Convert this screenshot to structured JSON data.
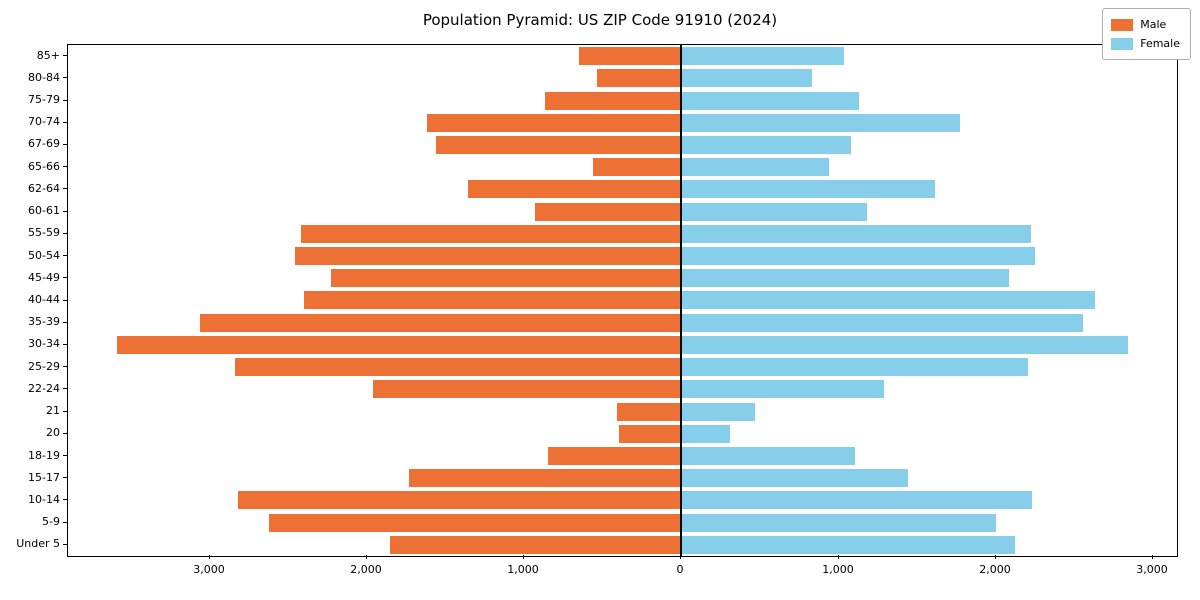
{
  "figure": {
    "title": "Population Pyramid: US ZIP Code 91910 (2024)"
  },
  "chart_data": {
    "type": "bar",
    "subtype": "population-pyramid (horizontal, mirrored)",
    "title": "Population Pyramid: US ZIP Code 91910 (2024)",
    "categories_order": "top-to-bottom",
    "categories": [
      "85+",
      "80-84",
      "75-79",
      "70-74",
      "67-69",
      "65-66",
      "62-64",
      "60-61",
      "55-59",
      "50-54",
      "45-49",
      "40-44",
      "35-39",
      "30-34",
      "25-29",
      "22-24",
      "21",
      "20",
      "18-19",
      "15-17",
      "10-14",
      "5-9",
      "Under 5"
    ],
    "series": [
      {
        "name": "Male",
        "side": "left",
        "color": "#ed7134",
        "values": [
          650,
          540,
          870,
          1620,
          1560,
          560,
          1360,
          930,
          2420,
          2460,
          2230,
          2400,
          3060,
          3590,
          2840,
          1960,
          410,
          400,
          850,
          1730,
          2820,
          2620,
          1850
        ]
      },
      {
        "name": "Female",
        "side": "right",
        "color": "#87ceeb",
        "values": [
          1030,
          830,
          1130,
          1770,
          1080,
          940,
          1610,
          1180,
          2220,
          2250,
          2080,
          2630,
          2550,
          2840,
          2200,
          1290,
          470,
          310,
          1100,
          1440,
          2230,
          2000,
          2120
        ]
      }
    ],
    "xlim": [
      -3900,
      3150
    ],
    "xticks": [
      -3000,
      -2000,
      -1000,
      0,
      1000,
      2000,
      3000
    ],
    "xtick_labels": [
      "3,000",
      "2,000",
      "1,000",
      "0",
      "1,000",
      "2,000",
      "3,000"
    ],
    "grid": false,
    "legend": {
      "position": "upper-right",
      "entries": [
        "Male",
        "Female"
      ]
    }
  }
}
